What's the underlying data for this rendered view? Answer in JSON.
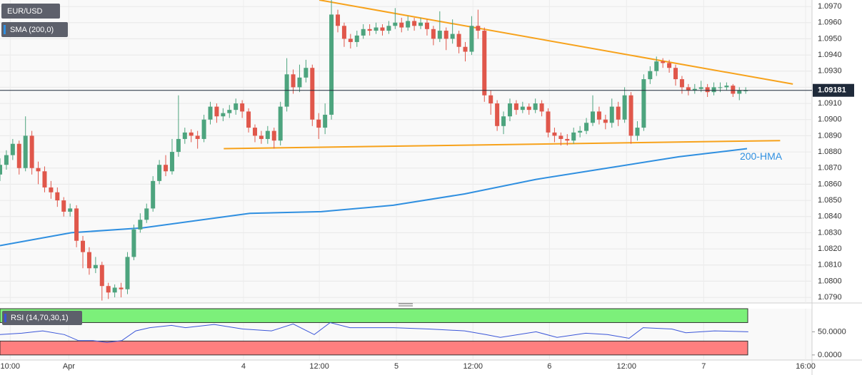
{
  "chart_data": [
    {
      "type": "candlestick",
      "title": "EUR/USD",
      "up_color": "#4da47e",
      "down_color": "#e0574b",
      "grid": true,
      "last_price": 1.09181,
      "xlim": [
        0,
        127.4
      ],
      "xticks": [
        {
          "value": 1.6,
          "label": "10:00"
        },
        {
          "value": 10.8,
          "label": "Apr"
        },
        {
          "value": 38.2,
          "label": "4"
        },
        {
          "value": 50.1,
          "label": "12:00"
        },
        {
          "value": 62.2,
          "label": "5"
        },
        {
          "value": 74.2,
          "label": "12:00"
        },
        {
          "value": 86.2,
          "label": "6"
        },
        {
          "value": 98.3,
          "label": "12:00"
        },
        {
          "value": 110.4,
          "label": "7"
        },
        {
          "value": 126.4,
          "label": "16:00"
        }
      ],
      "ylim": [
        1.07865,
        1.0974
      ],
      "yticks": [
        {
          "value": 1.079,
          "label": "1.0790"
        },
        {
          "value": 1.08,
          "label": "1.0800"
        },
        {
          "value": 1.081,
          "label": "1.0810"
        },
        {
          "value": 1.082,
          "label": "1.0820"
        },
        {
          "value": 1.083,
          "label": "1.0830"
        },
        {
          "value": 1.084,
          "label": "1.0840"
        },
        {
          "value": 1.085,
          "label": "1.0850"
        },
        {
          "value": 1.086,
          "label": "1.0860"
        },
        {
          "value": 1.087,
          "label": "1.0870"
        },
        {
          "value": 1.088,
          "label": "1.0880"
        },
        {
          "value": 1.089,
          "label": "1.0890"
        },
        {
          "value": 1.09,
          "label": "1.0900"
        },
        {
          "value": 1.091,
          "label": "1.0910"
        },
        {
          "value": 1.092,
          "label": "1.0920"
        },
        {
          "value": 1.093,
          "label": "1.0930"
        },
        {
          "value": 1.094,
          "label": "1.0940"
        },
        {
          "value": 1.095,
          "label": "1.0950"
        },
        {
          "value": 1.096,
          "label": "1.0960"
        },
        {
          "value": 1.097,
          "label": "1.0970"
        }
      ],
      "x": [
        0,
        1,
        2,
        3,
        4,
        5,
        6,
        7,
        8,
        9,
        10,
        11,
        12,
        13,
        14,
        15,
        16,
        17,
        18,
        19,
        20,
        21,
        22,
        23,
        24,
        25,
        26,
        27,
        28,
        29,
        30,
        31,
        32,
        33,
        34,
        35,
        36,
        37,
        38,
        39,
        40,
        41,
        42,
        43,
        44,
        45,
        46,
        47,
        48,
        49,
        50,
        51,
        52,
        53,
        54,
        55,
        56,
        57,
        58,
        59,
        60,
        61,
        62,
        63,
        64,
        65,
        66,
        67,
        68,
        69,
        70,
        71,
        72,
        73,
        74,
        75,
        76,
        77,
        78,
        79,
        80,
        81,
        82,
        83,
        84,
        85,
        86,
        87,
        88,
        89,
        90,
        91,
        92,
        93,
        94,
        95,
        96,
        97,
        98,
        99,
        100,
        101,
        102,
        103,
        104,
        105,
        106,
        107,
        108,
        109,
        110,
        111,
        112,
        113,
        114,
        115,
        116,
        117
      ],
      "open": [
        1.0866,
        1.0872,
        1.0878,
        1.0885,
        1.087,
        1.089,
        1.087,
        1.0868,
        1.0858,
        1.0855,
        1.085,
        1.0843,
        1.0845,
        1.0825,
        1.0818,
        1.0808,
        1.081,
        1.0797,
        1.0793,
        1.0796,
        1.0795,
        1.0815,
        1.0832,
        1.0838,
        1.0845,
        1.0862,
        1.0872,
        1.0868,
        1.088,
        1.0888,
        1.0892,
        1.089,
        1.0888,
        1.09,
        1.0908,
        1.0902,
        1.0904,
        1.0906,
        1.091,
        1.0905,
        1.0895,
        1.089,
        1.0888,
        1.0893,
        1.0887,
        1.0908,
        1.0928,
        1.092,
        1.0926,
        1.0932,
        1.09,
        1.0895,
        1.0903,
        1.0965,
        1.0958,
        1.095,
        1.0948,
        1.0952,
        1.0956,
        1.0955,
        1.0957,
        1.0955,
        1.0958,
        1.096,
        1.0957,
        1.0961,
        1.0958,
        1.096,
        1.0956,
        1.095,
        1.0955,
        1.095,
        1.0953,
        1.0945,
        1.0942,
        1.0958,
        1.0955,
        1.0915,
        1.091,
        1.0896,
        1.0902,
        1.091,
        1.0906,
        1.0908,
        1.0906,
        1.091,
        1.0905,
        1.0892,
        1.089,
        1.0888,
        1.0887,
        1.0892,
        1.0893,
        1.0898,
        1.0905,
        1.09,
        1.0898,
        1.0908,
        1.09,
        1.0915,
        1.089,
        1.0895,
        1.0925,
        1.093,
        1.0936,
        1.0935,
        1.0932,
        1.0925,
        1.092,
        1.0918,
        1.0919,
        1.092,
        1.0917,
        1.092,
        1.092,
        1.0921,
        1.0916,
        1.0918
      ],
      "high": [
        1.0876,
        1.0881,
        1.0888,
        1.0887,
        1.0902,
        1.0893,
        1.0874,
        1.0871,
        1.0862,
        1.0858,
        1.0852,
        1.0848,
        1.0847,
        1.0828,
        1.0821,
        1.0815,
        1.0812,
        1.0799,
        1.0798,
        1.0799,
        1.0818,
        1.0835,
        1.0842,
        1.0848,
        1.0865,
        1.0875,
        1.0878,
        1.0888,
        1.0915,
        1.0895,
        1.0894,
        1.0893,
        1.0903,
        1.0911,
        1.091,
        1.0907,
        1.0909,
        1.0913,
        1.0912,
        1.0907,
        1.0897,
        1.0893,
        1.0896,
        1.0895,
        1.0911,
        1.0938,
        1.0931,
        1.0934,
        1.0937,
        1.0934,
        1.0904,
        1.091,
        1.0974,
        1.0968,
        1.096,
        1.0953,
        1.0955,
        1.0959,
        1.0959,
        1.096,
        1.0959,
        1.0961,
        1.0969,
        1.0963,
        1.0964,
        1.0963,
        1.0963,
        1.0962,
        1.0958,
        1.0967,
        1.0957,
        1.0962,
        1.0955,
        1.0948,
        1.0964,
        1.0968,
        1.0957,
        1.0918,
        1.0912,
        1.0905,
        1.0913,
        1.0912,
        1.0911,
        1.091,
        1.0913,
        1.0912,
        1.0907,
        1.0895,
        1.0892,
        1.0891,
        1.0895,
        1.0896,
        1.0901,
        1.0915,
        1.0908,
        1.0903,
        1.0913,
        1.0911,
        1.092,
        1.0917,
        1.0899,
        1.0928,
        1.0933,
        1.0939,
        1.0938,
        1.0937,
        1.0934,
        1.0927,
        1.0922,
        1.0922,
        1.0924,
        1.0922,
        1.0923,
        1.0923,
        1.0923,
        1.0922,
        1.092,
        1.092
      ],
      "low": [
        1.0862,
        1.0869,
        1.0875,
        1.0866,
        1.0868,
        1.0866,
        1.086,
        1.0855,
        1.0851,
        1.0846,
        1.084,
        1.084,
        1.0821,
        1.0808,
        1.0804,
        1.0805,
        1.0788,
        1.0789,
        1.079,
        1.079,
        1.0792,
        1.0813,
        1.083,
        1.0836,
        1.0843,
        1.086,
        1.0865,
        1.0866,
        1.0877,
        1.0885,
        1.0886,
        1.0882,
        1.0886,
        1.0897,
        1.0898,
        1.0899,
        1.0901,
        1.0903,
        1.0901,
        1.0892,
        1.0886,
        1.0885,
        1.0885,
        1.0882,
        1.0884,
        1.0905,
        1.0916,
        1.0917,
        1.0923,
        1.0896,
        1.0888,
        1.0891,
        1.09,
        1.0954,
        1.0945,
        1.0944,
        1.0945,
        1.095,
        1.0952,
        1.0953,
        1.0952,
        1.0953,
        1.0956,
        1.0954,
        1.0955,
        1.0955,
        1.0956,
        1.0952,
        1.0946,
        1.0948,
        1.0943,
        1.0947,
        1.0941,
        1.0936,
        1.094,
        1.095,
        1.0911,
        1.0903,
        1.0893,
        1.0891,
        1.0899,
        1.0903,
        1.0904,
        1.0903,
        1.0904,
        1.0902,
        1.0889,
        1.0886,
        1.0884,
        1.0884,
        1.0885,
        1.0889,
        1.0891,
        1.0896,
        1.0897,
        1.0894,
        1.0895,
        1.0896,
        1.0898,
        1.0885,
        1.0887,
        1.0893,
        1.0922,
        1.0927,
        1.0932,
        1.0929,
        1.0921,
        1.0916,
        1.0915,
        1.0916,
        1.0917,
        1.0914,
        1.0915,
        1.0917,
        1.0918,
        1.0914,
        1.0912,
        1.0916
      ],
      "close": [
        1.0872,
        1.0878,
        1.0885,
        1.087,
        1.089,
        1.087,
        1.0868,
        1.0858,
        1.0855,
        1.085,
        1.0843,
        1.0845,
        1.0825,
        1.0818,
        1.0808,
        1.081,
        1.0797,
        1.0793,
        1.0796,
        1.0795,
        1.0815,
        1.0832,
        1.0838,
        1.0845,
        1.0862,
        1.0872,
        1.0868,
        1.088,
        1.0888,
        1.0892,
        1.089,
        1.0888,
        1.09,
        1.0908,
        1.0902,
        1.0904,
        1.0906,
        1.091,
        1.0905,
        1.0895,
        1.089,
        1.0888,
        1.0893,
        1.0887,
        1.0908,
        1.0928,
        1.092,
        1.0926,
        1.0932,
        1.09,
        1.0895,
        1.0903,
        1.0965,
        1.0958,
        1.095,
        1.0948,
        1.0952,
        1.0956,
        1.0955,
        1.0957,
        1.0955,
        1.0958,
        1.096,
        1.0957,
        1.0961,
        1.0958,
        1.096,
        1.0956,
        1.095,
        1.0955,
        1.095,
        1.0953,
        1.0945,
        1.0942,
        1.0958,
        1.0955,
        1.0915,
        1.091,
        1.0896,
        1.0902,
        1.091,
        1.0906,
        1.0908,
        1.0906,
        1.091,
        1.0905,
        1.0892,
        1.089,
        1.0888,
        1.0887,
        1.0892,
        1.0893,
        1.0898,
        1.0905,
        1.09,
        1.0898,
        1.0908,
        1.09,
        1.0915,
        1.089,
        1.0895,
        1.0925,
        1.093,
        1.0936,
        1.0935,
        1.0932,
        1.0925,
        1.092,
        1.0918,
        1.0919,
        1.092,
        1.0917,
        1.092,
        1.092,
        1.0921,
        1.0916,
        1.0918,
        1.0918
      ],
      "series": [
        {
          "name": "SMA (200,0)",
          "label": "200-HMA",
          "color": "#2f8fe0",
          "x": [
            0,
            11.2,
            22.4,
            33.6,
            39.2,
            50.4,
            61.7,
            72.9,
            84.1,
            95.3,
            106.5,
            117.2
          ],
          "values": [
            1.0822,
            1.083,
            1.0833,
            1.0839,
            1.0842,
            1.0843,
            1.0847,
            1.0854,
            1.0863,
            1.087,
            1.0877,
            1.0882
          ]
        }
      ],
      "trendlines": [
        {
          "color": "#f7a21b",
          "x": [
            50.1,
            124.4
          ],
          "values": [
            1.0974,
            1.0922
          ]
        },
        {
          "color": "#f7a21b",
          "x": [
            35.1,
            122.4
          ],
          "values": [
            1.0882,
            1.0887
          ]
        }
      ]
    },
    {
      "type": "line",
      "title": "RSI (14,70,30,1)",
      "xlim": [
        0,
        127.4
      ],
      "ylim": [
        -11,
        100
      ],
      "yticks": [
        {
          "value": 50,
          "label": "50.0000"
        },
        {
          "value": 0,
          "label": "0.0000"
        }
      ],
      "zones": [
        {
          "from": 70,
          "to": 100,
          "color": "#7cf07a"
        },
        {
          "from": 0,
          "to": 30,
          "color": "#ff7f7f"
        }
      ],
      "series": [
        {
          "color": "#3a55d8",
          "x": [
            0,
            3.4,
            6.7,
            10.1,
            12.3,
            14.6,
            16.8,
            19.1,
            21.3,
            23.5,
            26.9,
            29.1,
            33.6,
            38.1,
            42.6,
            46,
            49.3,
            51.8,
            54.9,
            61.7,
            67.3,
            72.9,
            76.2,
            78.5,
            84.1,
            87.4,
            91.9,
            95.3,
            98.7,
            100.9,
            105.4,
            107.6,
            112.1,
            117.4
          ],
          "values": [
            44,
            47,
            52,
            44,
            31,
            31,
            27,
            31,
            52,
            59,
            64,
            59,
            66,
            56,
            52,
            67,
            44,
            70,
            59,
            59,
            56,
            52,
            44,
            38,
            50,
            38,
            47,
            44,
            36,
            59,
            56,
            48,
            52,
            50
          ]
        }
      ]
    }
  ]
}
